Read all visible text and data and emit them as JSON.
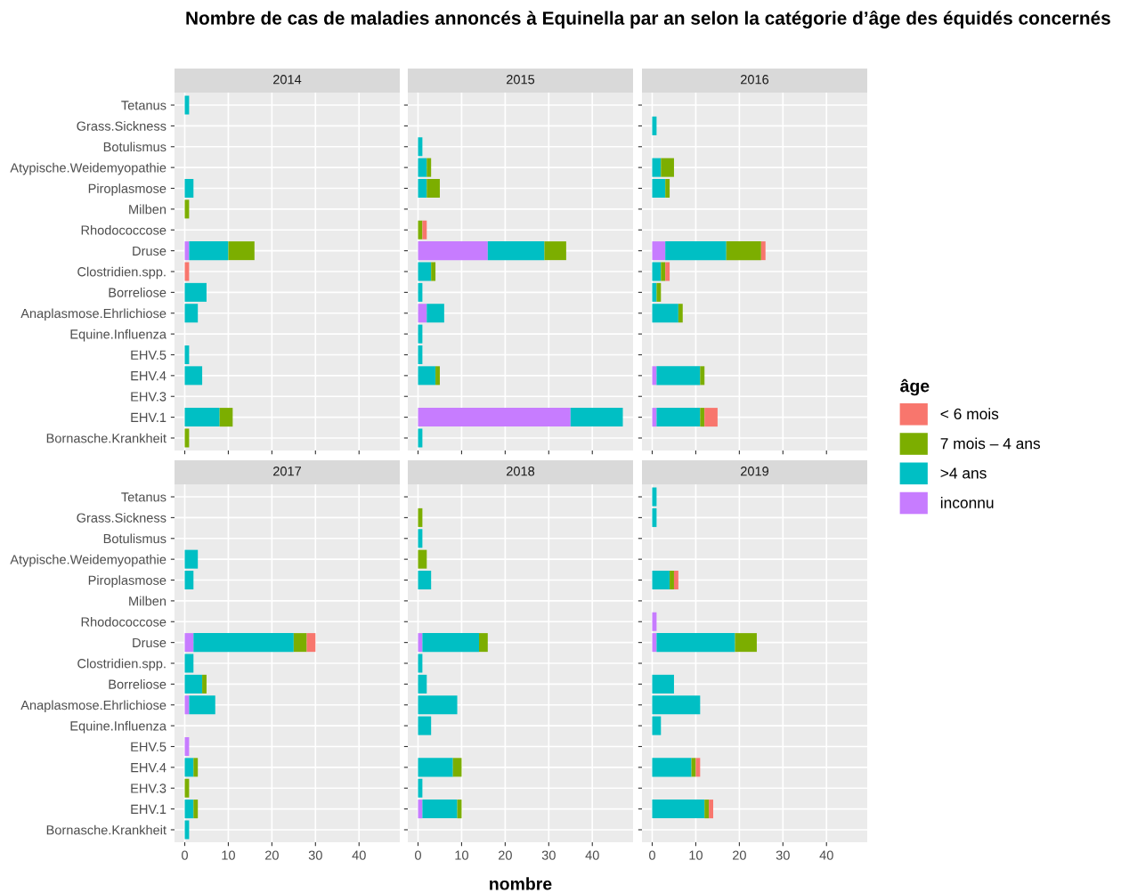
{
  "chart_data": [
    {
      "type": "bar",
      "title": "2014",
      "annotations": [
        "Nombre de cas de maladies annoncés à Equinella par an selon la catégorie d’âge des équidés concernés"
      ],
      "legend": "right",
      "legend_title": "âge",
      "orientation": "horizontal",
      "stacked": true,
      "grid": true,
      "tick_labels": "y",
      "categories": [
        "Tetanus",
        "Grass.Sickness",
        "Botulismus",
        "Atypische.Weidemyopathie",
        "Piroplasmose",
        "Milben",
        "Rhodococcose",
        "Druse",
        "Clostridien.spp.",
        "Borreliose",
        "Anaplasmose.Ehrlichiose",
        "Equine.Influenza",
        "EHV.5",
        "EHV.4",
        "EHV.3",
        "EHV.1",
        "Bornasche.Krankheit"
      ],
      "xlim": [
        -2.35,
        49.35
      ],
      "xticks": [
        0,
        10,
        20,
        30,
        40
      ],
      "series": [
        {
          "name": "inconnu",
          "color": "#c77cff",
          "values": [
            null,
            null,
            null,
            null,
            null,
            null,
            null,
            1,
            null,
            null,
            null,
            null,
            null,
            null,
            null,
            null,
            null
          ]
        },
        {
          "name": ">4 ans",
          "color": "#00bfc4",
          "values": [
            1,
            null,
            null,
            null,
            2,
            null,
            null,
            9,
            null,
            5,
            3,
            null,
            1,
            4,
            null,
            8,
            null
          ]
        },
        {
          "name": "7 mois – 4 ans",
          "color": "#7cae00",
          "values": [
            null,
            null,
            null,
            null,
            null,
            1,
            null,
            6,
            null,
            null,
            null,
            null,
            null,
            null,
            null,
            3,
            1
          ]
        },
        {
          "name": "< 6 mois",
          "color": "#f8766d",
          "values": [
            null,
            null,
            null,
            null,
            null,
            null,
            null,
            null,
            1,
            null,
            null,
            null,
            null,
            null,
            null,
            null,
            null
          ]
        }
      ]
    },
    {
      "type": "bar",
      "title": "2015",
      "orientation": "horizontal",
      "stacked": true,
      "grid": true,
      "tick_labels": false,
      "xlim": [
        -2.35,
        49.35
      ],
      "xticks": [
        0,
        10,
        20,
        30,
        40
      ],
      "series": [
        {
          "color": "#c77cff",
          "values": [
            null,
            null,
            null,
            null,
            null,
            null,
            null,
            16,
            null,
            null,
            2,
            null,
            null,
            null,
            null,
            35,
            null
          ]
        },
        {
          "color": "#00bfc4",
          "values": [
            null,
            null,
            1,
            2,
            2,
            null,
            null,
            13,
            3,
            1,
            4,
            1,
            1,
            4,
            null,
            12,
            1
          ]
        },
        {
          "color": "#7cae00",
          "values": [
            null,
            null,
            null,
            1,
            3,
            null,
            1,
            5,
            1,
            null,
            null,
            null,
            null,
            1,
            null,
            null,
            null
          ]
        },
        {
          "color": "#f8766d",
          "values": [
            null,
            null,
            null,
            null,
            null,
            null,
            1,
            null,
            null,
            null,
            null,
            null,
            null,
            null,
            null,
            null,
            null
          ]
        }
      ]
    },
    {
      "type": "bar",
      "title": "2016",
      "orientation": "horizontal",
      "stacked": true,
      "grid": true,
      "tick_labels": false,
      "xlim": [
        -2.35,
        49.35
      ],
      "xticks": [
        0,
        10,
        20,
        30,
        40
      ],
      "series": [
        {
          "color": "#c77cff",
          "values": [
            null,
            null,
            null,
            null,
            null,
            null,
            null,
            3,
            null,
            null,
            null,
            null,
            null,
            1,
            null,
            1,
            null
          ]
        },
        {
          "color": "#00bfc4",
          "values": [
            null,
            1,
            null,
            2,
            3,
            null,
            null,
            14,
            2,
            1,
            6,
            null,
            null,
            10,
            null,
            10,
            null
          ]
        },
        {
          "color": "#7cae00",
          "values": [
            null,
            null,
            null,
            3,
            1,
            null,
            null,
            8,
            1,
            1,
            1,
            null,
            null,
            1,
            null,
            1,
            null
          ]
        },
        {
          "color": "#f8766d",
          "values": [
            null,
            null,
            null,
            null,
            null,
            null,
            null,
            1,
            1,
            null,
            null,
            null,
            null,
            null,
            null,
            3,
            null
          ]
        }
      ]
    },
    {
      "type": "bar",
      "title": "2017",
      "orientation": "horizontal",
      "stacked": true,
      "grid": true,
      "categories": [
        "Tetanus",
        "Grass.Sickness",
        "Botulismus",
        "Atypische.Weidemyopathie",
        "Piroplasmose",
        "Milben",
        "Rhodococcose",
        "Druse",
        "Clostridien.spp.",
        "Borreliose",
        "Anaplasmose.Ehrlichiose",
        "Equine.Influenza",
        "EHV.5",
        "EHV.4",
        "EHV.3",
        "EHV.1",
        "Bornasche.Krankheit"
      ],
      "xlim": [
        -2.35,
        49.35
      ],
      "xticks": [
        0,
        10,
        20,
        30,
        40
      ],
      "series": [
        {
          "color": "#c77cff",
          "values": [
            null,
            null,
            null,
            null,
            null,
            null,
            null,
            2,
            null,
            null,
            1,
            null,
            1,
            null,
            null,
            null,
            null
          ]
        },
        {
          "color": "#00bfc4",
          "values": [
            null,
            null,
            null,
            3,
            2,
            null,
            null,
            23,
            2,
            4,
            6,
            null,
            null,
            2,
            null,
            2,
            1
          ]
        },
        {
          "color": "#7cae00",
          "values": [
            null,
            null,
            null,
            null,
            null,
            null,
            null,
            3,
            null,
            1,
            null,
            null,
            null,
            1,
            1,
            1,
            null
          ]
        },
        {
          "color": "#f8766d",
          "values": [
            null,
            null,
            null,
            null,
            null,
            null,
            null,
            2,
            null,
            null,
            null,
            null,
            null,
            null,
            null,
            null,
            null
          ]
        }
      ]
    },
    {
      "type": "bar",
      "title": "2018",
      "xlabel": "nombre",
      "orientation": "horizontal",
      "stacked": true,
      "grid": true,
      "tick_labels": "x",
      "xlim": [
        -2.35,
        49.35
      ],
      "xticks": [
        0,
        10,
        20,
        30,
        40
      ],
      "series": [
        {
          "color": "#c77cff",
          "values": [
            null,
            null,
            null,
            null,
            null,
            null,
            null,
            1,
            null,
            null,
            null,
            null,
            null,
            null,
            null,
            1,
            null
          ]
        },
        {
          "color": "#00bfc4",
          "values": [
            null,
            null,
            1,
            null,
            3,
            null,
            null,
            13,
            1,
            2,
            9,
            3,
            null,
            8,
            1,
            8,
            null
          ]
        },
        {
          "color": "#7cae00",
          "values": [
            null,
            1,
            null,
            2,
            null,
            null,
            null,
            2,
            null,
            null,
            null,
            null,
            null,
            2,
            null,
            1,
            null
          ]
        }
      ]
    },
    {
      "type": "bar",
      "title": "2019",
      "orientation": "horizontal",
      "stacked": true,
      "grid": true,
      "tick_labels": "x",
      "xlim": [
        -2.35,
        49.35
      ],
      "xticks": [
        0,
        10,
        20,
        30,
        40
      ],
      "series": [
        {
          "color": "#c77cff",
          "values": [
            null,
            null,
            null,
            null,
            null,
            null,
            1,
            1,
            null,
            null,
            null,
            null,
            null,
            null,
            null,
            null,
            null
          ]
        },
        {
          "color": "#00bfc4",
          "values": [
            1,
            1,
            null,
            null,
            4,
            null,
            null,
            18,
            null,
            5,
            11,
            2,
            null,
            9,
            null,
            12,
            null
          ]
        },
        {
          "color": "#7cae00",
          "values": [
            null,
            null,
            null,
            null,
            1,
            null,
            null,
            5,
            null,
            null,
            null,
            null,
            null,
            1,
            null,
            1,
            null
          ]
        },
        {
          "color": "#f8766d",
          "values": [
            null,
            null,
            null,
            null,
            1,
            null,
            null,
            null,
            null,
            null,
            null,
            null,
            null,
            1,
            null,
            1,
            null
          ]
        }
      ]
    }
  ]
}
